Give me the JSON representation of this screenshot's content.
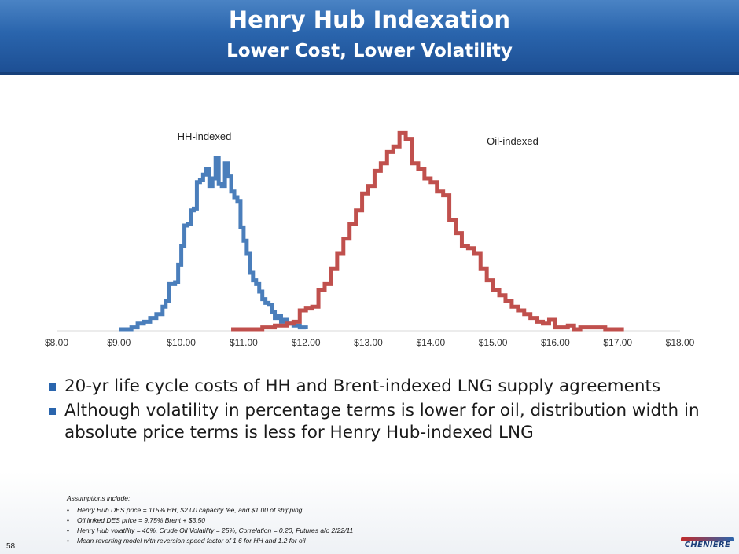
{
  "header": {
    "title": "Henry Hub Indexation",
    "subtitle": "Lower Cost, Lower Volatility"
  },
  "chart_data": {
    "type": "line",
    "xlabel": "",
    "ylabel": "",
    "x_ticks": [
      "$8.00",
      "$9.00",
      "$10.00",
      "$11.00",
      "$12.00",
      "$13.00",
      "$14.00",
      "$15.00",
      "$16.00",
      "$17.00",
      "$18.00"
    ],
    "xlim": [
      8,
      18
    ],
    "ylim": [
      0,
      105
    ],
    "grid": false,
    "legend": "none",
    "series": [
      {
        "name": "HH-indexed",
        "color": "#4a7ebb",
        "points": [
          [
            9.0,
            0
          ],
          [
            9.2,
            1
          ],
          [
            9.3,
            3
          ],
          [
            9.4,
            4
          ],
          [
            9.5,
            6
          ],
          [
            9.6,
            8
          ],
          [
            9.7,
            12
          ],
          [
            9.75,
            15
          ],
          [
            9.8,
            24
          ],
          [
            9.9,
            25
          ],
          [
            9.95,
            34
          ],
          [
            10.0,
            44
          ],
          [
            10.05,
            55
          ],
          [
            10.1,
            56
          ],
          [
            10.15,
            63
          ],
          [
            10.2,
            64
          ],
          [
            10.25,
            78
          ],
          [
            10.3,
            79
          ],
          [
            10.35,
            82
          ],
          [
            10.4,
            85
          ],
          [
            10.45,
            76
          ],
          [
            10.5,
            80
          ],
          [
            10.55,
            91
          ],
          [
            10.6,
            77
          ],
          [
            10.65,
            76
          ],
          [
            10.7,
            88
          ],
          [
            10.75,
            81
          ],
          [
            10.8,
            73
          ],
          [
            10.85,
            70
          ],
          [
            10.9,
            68
          ],
          [
            10.95,
            54
          ],
          [
            11.0,
            47
          ],
          [
            11.05,
            40
          ],
          [
            11.1,
            30
          ],
          [
            11.15,
            26
          ],
          [
            11.2,
            24
          ],
          [
            11.25,
            20
          ],
          [
            11.3,
            16
          ],
          [
            11.35,
            14
          ],
          [
            11.4,
            13
          ],
          [
            11.45,
            9
          ],
          [
            11.5,
            6
          ],
          [
            11.55,
            7
          ],
          [
            11.6,
            4
          ],
          [
            11.65,
            5
          ],
          [
            11.7,
            3
          ],
          [
            11.8,
            2
          ],
          [
            11.9,
            1
          ],
          [
            12.0,
            0
          ]
        ]
      },
      {
        "name": "Oil-indexed",
        "color": "#c0504d",
        "points": [
          [
            10.8,
            0
          ],
          [
            11.0,
            0
          ],
          [
            11.3,
            1
          ],
          [
            11.5,
            2
          ],
          [
            11.7,
            3
          ],
          [
            11.8,
            4
          ],
          [
            11.9,
            10
          ],
          [
            12.0,
            11
          ],
          [
            12.1,
            12
          ],
          [
            12.2,
            21
          ],
          [
            12.3,
            24
          ],
          [
            12.4,
            32
          ],
          [
            12.5,
            40
          ],
          [
            12.6,
            48
          ],
          [
            12.7,
            56
          ],
          [
            12.8,
            63
          ],
          [
            12.9,
            72
          ],
          [
            13.0,
            76
          ],
          [
            13.1,
            84
          ],
          [
            13.2,
            88
          ],
          [
            13.3,
            94
          ],
          [
            13.4,
            97
          ],
          [
            13.5,
            104
          ],
          [
            13.6,
            101
          ],
          [
            13.7,
            88
          ],
          [
            13.8,
            85
          ],
          [
            13.9,
            80
          ],
          [
            14.0,
            78
          ],
          [
            14.1,
            73
          ],
          [
            14.2,
            71
          ],
          [
            14.3,
            58
          ],
          [
            14.4,
            51
          ],
          [
            14.5,
            44
          ],
          [
            14.6,
            43
          ],
          [
            14.7,
            40
          ],
          [
            14.8,
            32
          ],
          [
            14.9,
            26
          ],
          [
            15.0,
            21
          ],
          [
            15.1,
            18
          ],
          [
            15.2,
            15
          ],
          [
            15.3,
            12
          ],
          [
            15.4,
            10
          ],
          [
            15.5,
            8
          ],
          [
            15.6,
            6
          ],
          [
            15.7,
            4
          ],
          [
            15.8,
            3
          ],
          [
            15.9,
            5
          ],
          [
            16.0,
            1
          ],
          [
            16.2,
            2
          ],
          [
            16.3,
            0
          ],
          [
            16.4,
            1
          ],
          [
            16.6,
            1
          ],
          [
            16.8,
            0
          ],
          [
            17.0,
            0
          ],
          [
            17.1,
            0
          ]
        ]
      }
    ],
    "annotations": [
      {
        "text": "HH-indexed"
      },
      {
        "text": "Oil-indexed"
      }
    ]
  },
  "bullets": [
    "20-yr life cycle costs of HH and Brent-indexed LNG supply agreements",
    "Although volatility in percentage terms is lower for oil, distribution width in absolute price terms is less for Henry Hub-indexed LNG"
  ],
  "assumptions": {
    "heading": "Assumptions include:",
    "items": [
      "Henry Hub DES price = 115% HH, $2.00 capacity fee, and $1.00 of shipping",
      "Oil linked DES price = 9.75% Brent + $3.50",
      "Henry Hub volatility = 46%, Crude Oil Volatility = 25%, Correlation = 0.20, Futures a/o 2/22/11",
      "Mean reverting model with reversion speed factor of 1.6 for HH and 1.2 for oil"
    ]
  },
  "footer": {
    "page_number": "58",
    "logo_text": "CHENIERE"
  }
}
